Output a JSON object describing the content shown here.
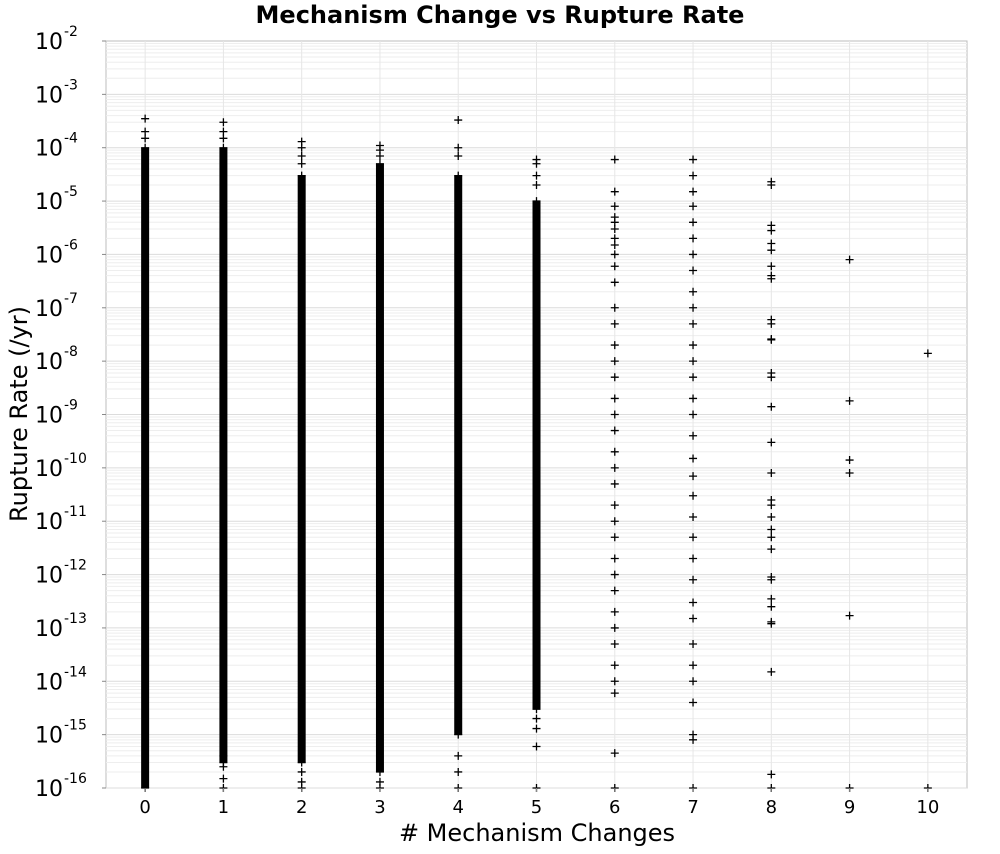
{
  "chart_data": {
    "type": "scatter",
    "title": "Mechanism Change vs Rupture Rate",
    "xlabel": "# Mechanism Changes",
    "ylabel": "Rupture Rate (/yr)",
    "x_ticks": [
      "0",
      "1",
      "2",
      "3",
      "4",
      "5",
      "6",
      "7",
      "8",
      "9",
      "10"
    ],
    "xlim": [
      -0.5,
      10.5
    ],
    "y_scale": "log",
    "ylim": [
      1e-16,
      0.01
    ],
    "y_ticks": [
      {
        "base": "10",
        "exp": "-2",
        "value": 0.01
      },
      {
        "base": "10",
        "exp": "-3",
        "value": 0.001
      },
      {
        "base": "10",
        "exp": "-4",
        "value": 0.0001
      },
      {
        "base": "10",
        "exp": "-5",
        "value": 1e-05
      },
      {
        "base": "10",
        "exp": "-6",
        "value": 1e-06
      },
      {
        "base": "10",
        "exp": "-7",
        "value": 1e-07
      },
      {
        "base": "10",
        "exp": "-8",
        "value": 1e-08
      },
      {
        "base": "10",
        "exp": "-9",
        "value": 1e-09
      },
      {
        "base": "10",
        "exp": "-10",
        "value": 1e-10
      },
      {
        "base": "10",
        "exp": "-11",
        "value": 1e-11
      },
      {
        "base": "10",
        "exp": "-12",
        "value": 1e-12
      },
      {
        "base": "10",
        "exp": "-13",
        "value": 1e-13
      },
      {
        "base": "10",
        "exp": "-14",
        "value": 1e-14
      },
      {
        "base": "10",
        "exp": "-15",
        "value": 1e-15
      },
      {
        "base": "10",
        "exp": "-16",
        "value": 1e-16
      }
    ],
    "grid": true,
    "marker": "+",
    "marker_color": "#000000",
    "columns": [
      {
        "x": 0,
        "dense_range": [
          1e-16,
          0.0001
        ],
        "max": 0.00035,
        "outliers": [
          0.0002,
          0.00015
        ]
      },
      {
        "x": 1,
        "dense_range": [
          3e-16,
          0.0001
        ],
        "max": 0.0003,
        "outliers": [
          0.0002,
          0.00015,
          4e-16,
          2.5e-16,
          1.5e-16,
          1e-16
        ]
      },
      {
        "x": 2,
        "dense_range": [
          3e-16,
          3e-05
        ],
        "max": 0.00013,
        "outliers": [
          0.0001,
          7e-05,
          5e-05,
          2e-16,
          1.3e-16,
          1e-16
        ]
      },
      {
        "x": 3,
        "dense_range": [
          2e-16,
          5e-05
        ],
        "max": 0.00011,
        "outliers": [
          9e-05,
          7e-05,
          1.3e-16,
          1e-16
        ]
      },
      {
        "x": 4,
        "dense_range": [
          1e-15,
          3e-05
        ],
        "max": 0.00033,
        "outliers": [
          0.0001,
          7e-05,
          4e-16,
          2e-16,
          1e-16
        ]
      },
      {
        "x": 5,
        "dense_range": [
          3e-15,
          1e-05
        ],
        "max": 6e-05,
        "outliers": [
          5e-05,
          3e-05,
          2e-05,
          2e-15,
          1.3e-15,
          6e-16,
          1e-16
        ]
      },
      {
        "x": 6,
        "points": [
          6e-05,
          1.5e-05,
          8e-06,
          5e-06,
          4e-06,
          3e-06,
          2e-06,
          1.5e-06,
          1e-06,
          6e-07,
          3e-07,
          1e-07,
          5e-08,
          2e-08,
          1e-08,
          5e-09,
          2e-09,
          1e-09,
          5e-10,
          2e-10,
          1e-10,
          5e-11,
          2e-11,
          1e-11,
          5e-12,
          2e-12,
          1e-12,
          5e-13,
          2e-13,
          1e-13,
          5e-14,
          2e-14,
          1e-14,
          6e-15,
          4.5e-16,
          1e-16
        ]
      },
      {
        "x": 7,
        "points": [
          6e-05,
          3e-05,
          1.5e-05,
          8e-06,
          4e-06,
          2e-06,
          1e-06,
          5e-07,
          2e-07,
          1e-07,
          5e-08,
          2e-08,
          1e-08,
          5e-09,
          2e-09,
          1e-09,
          4e-10,
          1.5e-10,
          7e-11,
          3e-11,
          1.2e-11,
          5e-12,
          2e-12,
          8e-13,
          3e-13,
          1.5e-13,
          5e-14,
          2e-14,
          1e-14,
          4e-15,
          1e-15,
          8e-16,
          1e-16
        ]
      },
      {
        "x": 8,
        "points": [
          2.3e-05,
          2e-05,
          3.5e-06,
          2.8e-06,
          1.6e-06,
          1.2e-06,
          6e-07,
          4e-07,
          3.5e-07,
          6e-08,
          5e-08,
          2.6e-08,
          2.5e-08,
          6e-09,
          5e-09,
          1.4e-09,
          3e-10,
          8e-11,
          2.5e-11,
          2e-11,
          1.2e-11,
          7e-12,
          5e-12,
          3e-12,
          9e-13,
          8e-13,
          3.5e-13,
          2.5e-13,
          1.3e-13,
          1.2e-13,
          1.5e-14,
          1.8e-16,
          1e-16
        ]
      },
      {
        "x": 9,
        "points": [
          8e-07,
          1.8e-09,
          1.4e-10,
          8e-11,
          1.7e-13,
          1e-16
        ]
      },
      {
        "x": 10,
        "points": [
          1.4e-08,
          1e-16
        ]
      }
    ]
  }
}
